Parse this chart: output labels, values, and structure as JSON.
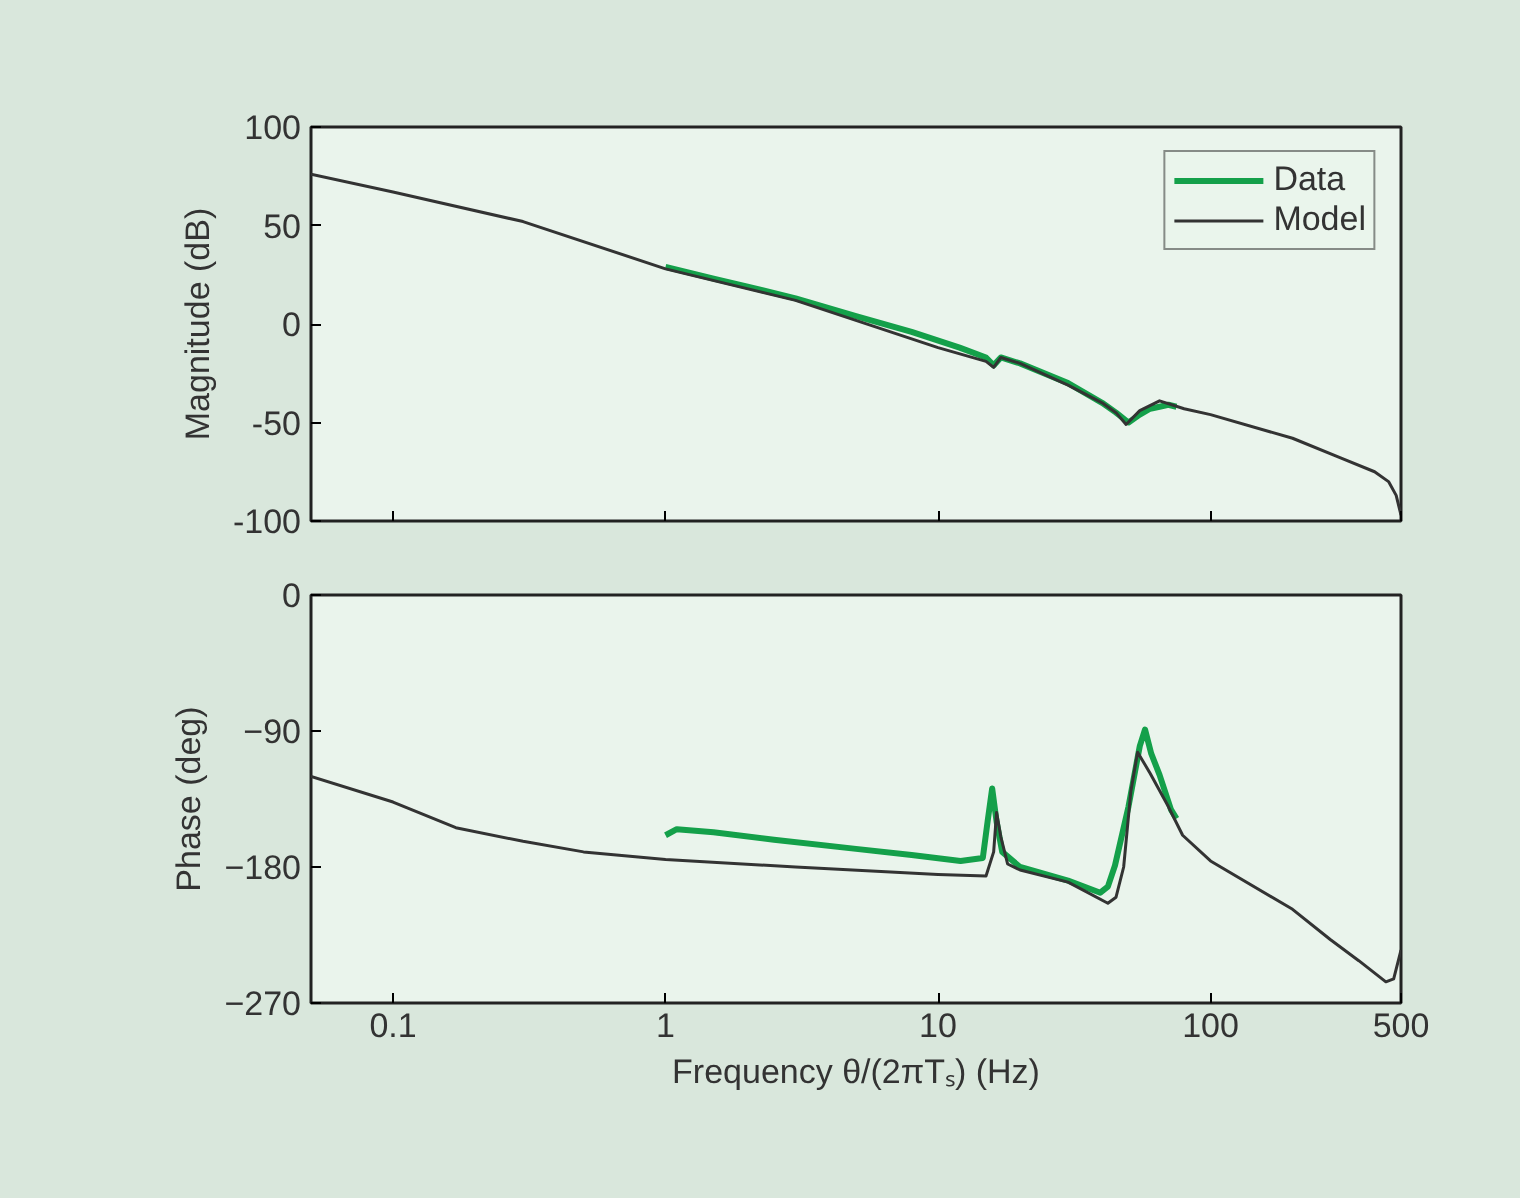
{
  "chart_data": [
    {
      "type": "line",
      "ylabel": "Magnitude (dB)",
      "log": "x",
      "xlim": [
        0.05,
        500
      ],
      "xticks": [
        0.1,
        1,
        10,
        100,
        500
      ],
      "ylim": [
        -100,
        100
      ],
      "yticks": [
        -100,
        -50,
        0,
        50,
        100
      ],
      "tick_labels": "y",
      "legend": "top right",
      "grid": false,
      "series": [
        {
          "name": "Data",
          "color": "#14a04a",
          "x": [
            1,
            1.5,
            2,
            3,
            5,
            8,
            12,
            15,
            16,
            17,
            20,
            30,
            40,
            45,
            50,
            55,
            60,
            65,
            70,
            75
          ],
          "values": [
            29,
            23,
            19,
            13,
            4,
            -4,
            -12,
            -17,
            -21,
            -17,
            -20,
            -30,
            -40,
            -45,
            -50,
            -46,
            -43,
            -42,
            -41,
            -42
          ]
        },
        {
          "name": "Model",
          "color": "#333333",
          "x": [
            0.05,
            0.1,
            0.3,
            1,
            3,
            10,
            15,
            16,
            17,
            20,
            30,
            40,
            45,
            49,
            55,
            65,
            80,
            100,
            200,
            300,
            400,
            450,
            480,
            500
          ],
          "values": [
            76,
            67,
            52,
            28,
            12,
            -12,
            -19,
            -22,
            -17,
            -20,
            -31,
            -40,
            -45,
            -51,
            -44,
            -39,
            -43,
            -46,
            -58,
            -68,
            -75,
            -80,
            -87,
            -97
          ]
        }
      ]
    },
    {
      "type": "line",
      "ylabel": "Phase (deg)",
      "xlabel": "Frequency θ/(2πTₛ) (Hz)",
      "log": "x",
      "xlim": [
        0.05,
        500
      ],
      "xticks": [
        0.1,
        1,
        10,
        100,
        500
      ],
      "ylim": [
        -270,
        0
      ],
      "yticks": [
        0,
        {
          "value": -90,
          "label": "−90"
        },
        {
          "value": -180,
          "label": "−180"
        },
        {
          "value": -270,
          "label": "−270"
        }
      ],
      "legend": false,
      "grid": false,
      "series": [
        {
          "color": "#14a04a",
          "x": [
            1,
            1.1,
            1.5,
            2.5,
            5,
            8,
            12.1,
            14.6,
            15.2,
            15.8,
            16.4,
            17.2,
            20,
            30,
            39.4,
            42,
            44.6,
            50,
            55,
            57.5,
            60.6,
            65,
            71.6,
            75
          ],
          "values": [
            -159,
            -155,
            -157,
            -162,
            -168,
            -172,
            -176,
            -174,
            -150,
            -128,
            -150,
            -170,
            -180,
            -189,
            -197,
            -193,
            -179,
            -140,
            -100,
            -89,
            -105,
            -119,
            -142,
            -148
          ]
        },
        {
          "color": "#333333",
          "x": [
            0.05,
            0.1,
            0.17,
            0.3,
            0.5,
            1,
            3,
            10,
            15,
            16,
            16.4,
            17,
            18,
            20,
            30,
            42,
            45,
            48,
            51,
            54,
            60,
            70,
            79,
            100,
            200,
            275,
            350,
            440,
            470,
            500
          ],
          "values": [
            -120,
            -137,
            -154,
            -163,
            -170,
            -175,
            -180,
            -185,
            -186,
            -170,
            -144,
            -160,
            -178,
            -182,
            -190,
            -204,
            -200,
            -180,
            -130,
            -104,
            -118,
            -140,
            -159,
            -176,
            -208,
            -228,
            -242,
            -256,
            -254,
            -235
          ]
        }
      ]
    }
  ]
}
